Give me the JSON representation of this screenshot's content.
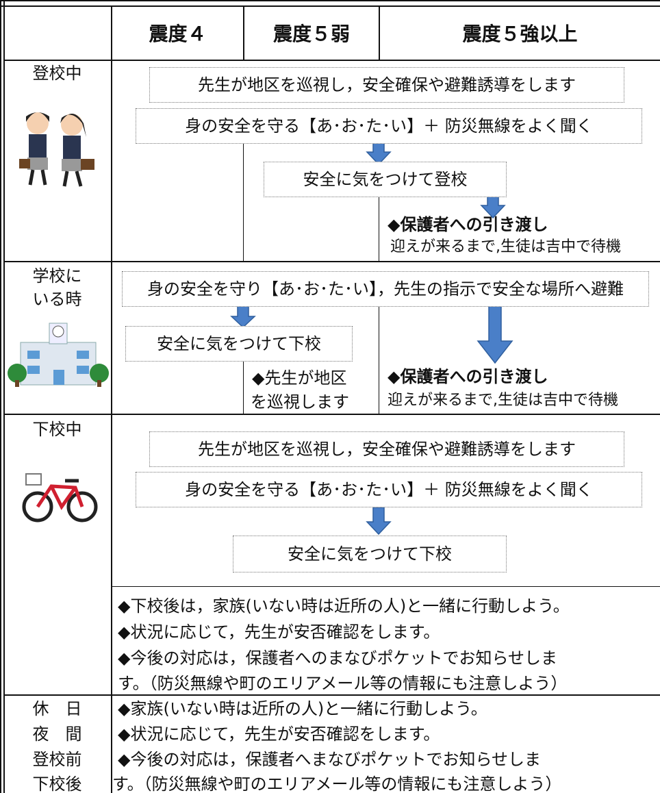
{
  "header": {
    "columns": [
      "震度４",
      "震度５弱",
      "震度５強以上"
    ]
  },
  "rows": [
    {
      "label_lines": [
        "登校中"
      ],
      "boxes": [
        "先生が地区を巡視し，安全確保や避難誘導をします",
        "身の安全を守る【あ･お･た･い】＋ 防災無線をよく聞く",
        "安全に気をつけて登校"
      ],
      "notes": [
        "◆保護者への引き渡し",
        "迎えが来るまで,生徒は吉中で待機"
      ]
    },
    {
      "label_lines": [
        "学校に",
        "いる時"
      ],
      "boxes": [
        "身の安全を守り【あ･お･た･い】，先生の指示で安全な場所へ避難",
        "安全に気をつけて下校"
      ],
      "notes": [
        "◆先生が地区",
        "を巡視します",
        "◆保護者への引き渡し",
        "迎えが来るまで,生徒は吉中で待機"
      ]
    },
    {
      "label_lines": [
        "下校中"
      ],
      "boxes": [
        "先生が地区を巡視し，安全確保や避難誘導をします",
        "身の安全を守る【あ･お･た･い】＋ 防災無線をよく聞く",
        "安全に気をつけて下校"
      ],
      "notes": [
        "◆下校後は，家族(いない時は近所の人)と一緒に行動しよう。",
        "◆状況に応じて，先生が安否確認をします。",
        "◆今後の対応は，保護者へのまなびポケットでお知らせしま",
        "す。（防災無線や町のエリアメール等の情報にも注意しよう）"
      ]
    },
    {
      "label_lines": [
        "休　日",
        "夜　間",
        "登校前",
        "下校後"
      ],
      "notes": [
        "◆家族(いない時は近所の人)と一緒に行動しよう。",
        "◆状況に応じて，先生が安否確認をします。",
        "◆今後の対応は，保護者へまなびポケットでお知らせしま",
        "す。（防災無線や町のエリアメール等の情報にも注意しよう）"
      ]
    }
  ]
}
